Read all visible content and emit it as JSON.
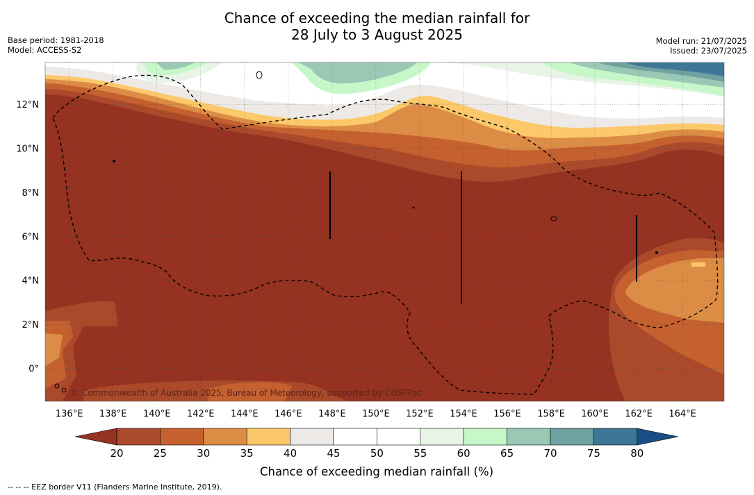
{
  "title": {
    "line1": "Chance of exceeding the median rainfall for",
    "line2": "28 July to 3 August 2025"
  },
  "meta_left": {
    "base_period": "Base period: 1981-2018",
    "model": "Model: ACCESS-S2"
  },
  "meta_right": {
    "model_run": "Model run: 21/07/2025",
    "issued": "Issued: 23/07/2025"
  },
  "map": {
    "lon_labels": [
      "136°E",
      "138°E",
      "140°E",
      "142°E",
      "144°E",
      "146°E",
      "148°E",
      "150°E",
      "152°E",
      "154°E",
      "156°E",
      "158°E",
      "160°E",
      "162°E",
      "164°E"
    ],
    "lat_labels": [
      "12°N",
      "10°N",
      "8°N",
      "6°N",
      "4°N",
      "2°N",
      "0°"
    ],
    "lon_range": [
      134.9,
      165.9
    ],
    "lat_range": [
      -1.5,
      13.9
    ],
    "watermark": "© Commonwealth of Australia 2025, Bureau of Meteorology, supported by COSPPac"
  },
  "colorbar": {
    "ticks": [
      "20",
      "25",
      "30",
      "35",
      "40",
      "45",
      "50",
      "55",
      "60",
      "65",
      "70",
      "75",
      "80"
    ],
    "title": "Chance of exceeding median rainfall (%)",
    "colors": [
      "#963221",
      "#aa4a2b",
      "#c5602f",
      "#dc8d45",
      "#fcc96a",
      "#ede9e6",
      "#ffffff",
      "#ffffff",
      "#e8f4e6",
      "#c7f7c9",
      "#99c9b5",
      "#6ea1a0",
      "#3e7698",
      "#184e84"
    ]
  },
  "footnote": "--  --  -- EEZ border V11 (Flanders Marine Institute, 2019)."
}
